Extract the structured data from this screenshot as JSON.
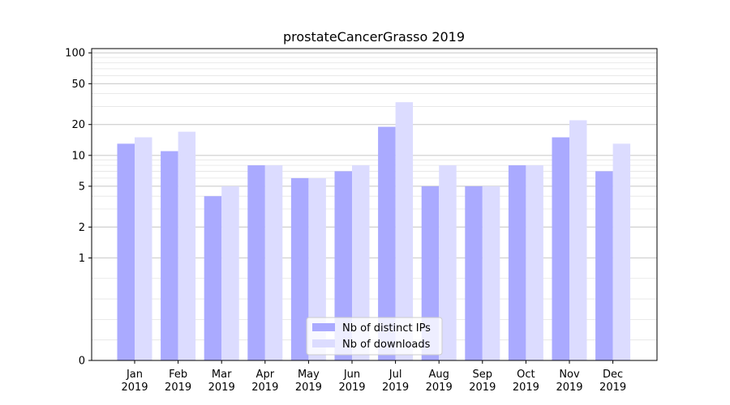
{
  "chart_data": {
    "type": "bar",
    "title": "prostateCancerGrasso 2019",
    "xlabel": "",
    "ylabel": "",
    "yscale": "symlog",
    "ylim": [
      0,
      110
    ],
    "yticks": [
      0,
      1,
      2,
      5,
      10,
      20,
      50,
      100
    ],
    "ytick_labels": [
      "0",
      "1",
      "2",
      "5",
      "10",
      "20",
      "50",
      "100"
    ],
    "grid": true,
    "legend_position": "bottom-center",
    "categories": [
      [
        "Jan",
        "2019"
      ],
      [
        "Feb",
        "2019"
      ],
      [
        "Mar",
        "2019"
      ],
      [
        "Apr",
        "2019"
      ],
      [
        "May",
        "2019"
      ],
      [
        "Jun",
        "2019"
      ],
      [
        "Jul",
        "2019"
      ],
      [
        "Aug",
        "2019"
      ],
      [
        "Sep",
        "2019"
      ],
      [
        "Oct",
        "2019"
      ],
      [
        "Nov",
        "2019"
      ],
      [
        "Dec",
        "2019"
      ]
    ],
    "series": [
      {
        "name": "Nb of distinct IPs",
        "color": "#aaaaff",
        "values": [
          13,
          11,
          4,
          8,
          6,
          7,
          19,
          5,
          5,
          8,
          15,
          7
        ]
      },
      {
        "name": "Nb of downloads",
        "color": "#dcdcff",
        "values": [
          15,
          17,
          5,
          8,
          6,
          8,
          33,
          8,
          5,
          8,
          22,
          13
        ]
      }
    ]
  }
}
